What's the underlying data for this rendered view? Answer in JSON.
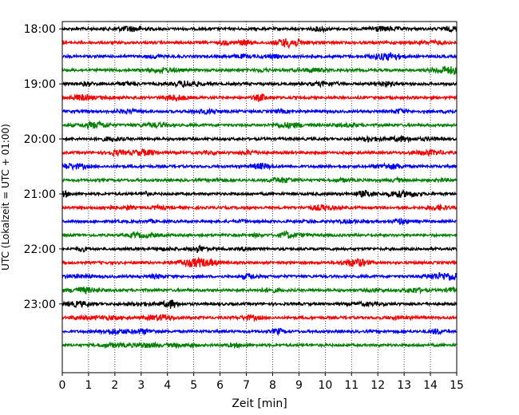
{
  "chart_data": {
    "type": "line",
    "title": "",
    "xlabel": "Zeit  [min]",
    "ylabel": "UTC (Lokalzeit = UTC + 01:00)",
    "xlim": [
      0,
      15
    ],
    "x_ticks": [
      0,
      1,
      2,
      3,
      4,
      5,
      6,
      7,
      8,
      9,
      10,
      11,
      12,
      13,
      14,
      15
    ],
    "x_tick_labels": [
      "0",
      "1",
      "2",
      "3",
      "4",
      "5",
      "6",
      "7",
      "8",
      "9",
      "10",
      "11",
      "12",
      "13",
      "14",
      "15"
    ],
    "y_tick_labels": [
      "18:00",
      "19:00",
      "20:00",
      "21:00",
      "22:00",
      "23:00"
    ],
    "ylim_minutes_utc": [
      "17:52",
      "24:15"
    ],
    "grid_x": true,
    "grid_style": "dotted",
    "line_colors": [
      "#000000",
      "#ff0000",
      "#0000ff",
      "#008000"
    ],
    "series": [
      {
        "start": "18:00",
        "color": "#000000"
      },
      {
        "start": "18:15",
        "color": "#ff0000"
      },
      {
        "start": "18:30",
        "color": "#0000ff"
      },
      {
        "start": "18:45",
        "color": "#008000"
      },
      {
        "start": "19:00",
        "color": "#000000"
      },
      {
        "start": "19:15",
        "color": "#ff0000"
      },
      {
        "start": "19:30",
        "color": "#0000ff"
      },
      {
        "start": "19:45",
        "color": "#008000"
      },
      {
        "start": "20:00",
        "color": "#000000"
      },
      {
        "start": "20:15",
        "color": "#ff0000"
      },
      {
        "start": "20:30",
        "color": "#0000ff"
      },
      {
        "start": "20:45",
        "color": "#008000"
      },
      {
        "start": "21:00",
        "color": "#000000"
      },
      {
        "start": "21:15",
        "color": "#ff0000"
      },
      {
        "start": "21:30",
        "color": "#0000ff"
      },
      {
        "start": "21:45",
        "color": "#008000"
      },
      {
        "start": "22:00",
        "color": "#000000"
      },
      {
        "start": "22:15",
        "color": "#ff0000"
      },
      {
        "start": "22:30",
        "color": "#0000ff"
      },
      {
        "start": "22:45",
        "color": "#008000"
      },
      {
        "start": "23:00",
        "color": "#000000"
      },
      {
        "start": "23:15",
        "color": "#ff0000"
      },
      {
        "start": "23:30",
        "color": "#0000ff"
      },
      {
        "start": "23:45",
        "color": "#008000"
      }
    ]
  }
}
